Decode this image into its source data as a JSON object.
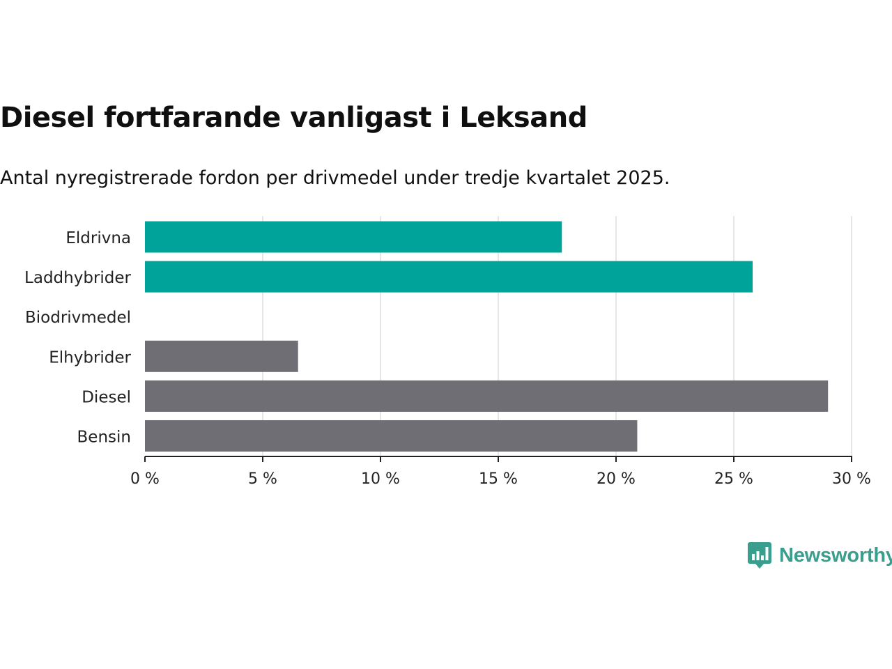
{
  "title": "Diesel fortfarande vanligast i Leksand",
  "subtitle": "Antal nyregistrerade fordon per drivmedel under tredje kvartalet 2025.",
  "brand": {
    "name": "Newsworthy",
    "color": "#3a9e8f",
    "icon": "newsworthy-logo-icon"
  },
  "colors": {
    "highlight": "#00a39a",
    "base": "#6f6e74",
    "grid": "#dddddd",
    "axis": "#222222"
  },
  "chart_data": {
    "type": "bar",
    "orientation": "horizontal",
    "title": "Diesel fortfarande vanligast i Leksand",
    "subtitle": "Antal nyregistrerade fordon per drivmedel under tredje kvartalet 2025.",
    "xlabel": "",
    "ylabel": "",
    "categories": [
      "Eldrivna",
      "Laddhybrider",
      "Biodrivmedel",
      "Elhybrider",
      "Diesel",
      "Bensin"
    ],
    "values": [
      17.7,
      25.8,
      0,
      6.5,
      29.0,
      20.9
    ],
    "highlight": [
      true,
      true,
      false,
      false,
      false,
      false
    ],
    "unit": "%",
    "xlim": [
      0,
      30
    ],
    "ticks": [
      0,
      5,
      10,
      15,
      20,
      25,
      30
    ],
    "tick_labels": [
      "0 %",
      "5 %",
      "10 %",
      "15 %",
      "20 %",
      "25 %",
      "30 %"
    ],
    "grid": true,
    "legend": "none"
  }
}
